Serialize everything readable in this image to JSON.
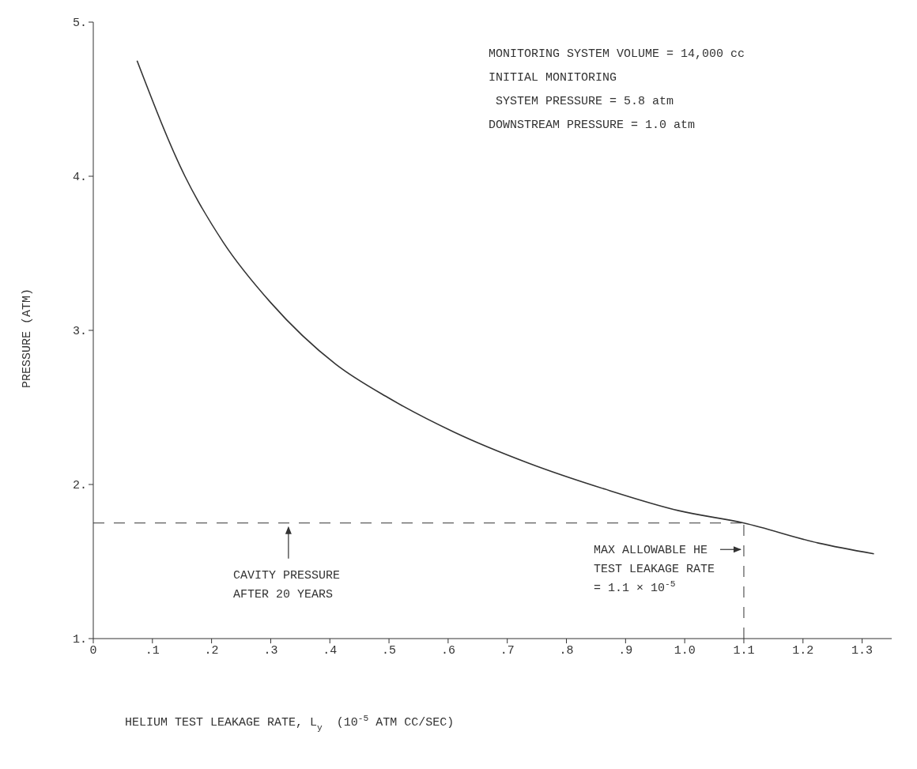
{
  "chart_data": {
    "type": "line",
    "xlabel": "HELIUM TEST LEAKAGE RATE, L$_{y}$  (10$^{-5}$ ATM CC/SEC)",
    "ylabel": "PRESSURE (ATM)",
    "x": [
      0.074,
      0.155,
      0.22,
      0.3,
      0.41,
      0.5,
      0.61,
      0.735,
      0.865,
      0.99,
      1.1,
      1.226,
      1.32
    ],
    "values": [
      4.75,
      4.0,
      3.57,
      3.18,
      2.78,
      2.56,
      2.34,
      2.14,
      1.97,
      1.83,
      1.75,
      1.62,
      1.55
    ],
    "color": "#333333",
    "xlim": [
      0,
      1.35
    ],
    "ylim": [
      1,
      5
    ],
    "xticks": [
      0,
      {
        "value": 0.1,
        "label": ".1"
      },
      {
        "value": 0.2,
        "label": ".2"
      },
      {
        "value": 0.3,
        "label": ".3"
      },
      {
        "value": 0.4,
        "label": ".4"
      },
      {
        "value": 0.5,
        "label": ".5"
      },
      {
        "value": 0.6,
        "label": ".6"
      },
      {
        "value": 0.7,
        "label": ".7"
      },
      {
        "value": 0.8,
        "label": ".8"
      },
      {
        "value": 0.9,
        "label": ".9"
      },
      {
        "value": 1.0,
        "label": "1.0"
      },
      1.1,
      1.2,
      1.3
    ],
    "yticks": [
      {
        "value": 1,
        "label": "1."
      },
      {
        "value": 2,
        "label": "2."
      },
      {
        "value": 3,
        "label": "3."
      },
      {
        "value": 4,
        "label": "4."
      },
      {
        "value": 5,
        "label": "5."
      }
    ],
    "ref_lines": [
      {
        "axis": "y",
        "value": 1.75,
        "line_style": "dashed"
      },
      {
        "axis": "x",
        "value": 1.1,
        "line_style": "dashed"
      }
    ],
    "annotations": [
      "MONITORING SYSTEM VOLUME = 14,000 cc\nINITIAL MONITORING\n SYSTEM PRESSURE = 5.8 atm\nDOWNSTREAM PRESSURE = 1.0 atm",
      {
        "text": "CAVITY PRESSURE\nAFTER 20 YEARS",
        "x": 0.33,
        "y": 1.75
      },
      {
        "text": "MAX ALLOWABLE HE\nTEST LEAKAGE RATE\n= 1.1 × 10$^{-5}$",
        "x": 1.1,
        "y": 1.45
      }
    ],
    "grid": false,
    "marker": "none",
    "line_style": "solid",
    "legend": false
  }
}
